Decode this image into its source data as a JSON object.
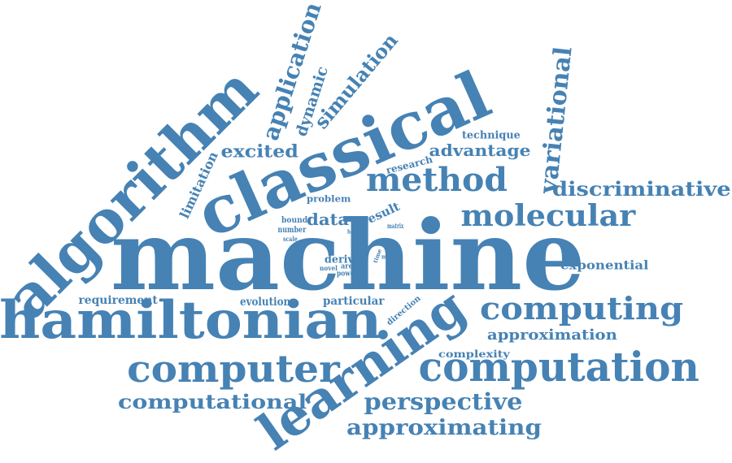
{
  "accent_color": "#4682b4",
  "words": [
    {
      "id": "machine",
      "text": "machine"
    },
    {
      "id": "classical",
      "text": "classical"
    },
    {
      "id": "algorithm",
      "text": "algorithm"
    },
    {
      "id": "hamiltonian",
      "text": "hamiltonian"
    },
    {
      "id": "learning",
      "text": "learning"
    },
    {
      "id": "computation",
      "text": "computation"
    },
    {
      "id": "computer",
      "text": "computer"
    },
    {
      "id": "computing",
      "text": "computing"
    },
    {
      "id": "method",
      "text": "method"
    },
    {
      "id": "molecular",
      "text": "molecular"
    },
    {
      "id": "variational",
      "text": "variational"
    },
    {
      "id": "application",
      "text": "application"
    },
    {
      "id": "simulation",
      "text": "simulation"
    },
    {
      "id": "discriminative",
      "text": "discriminative"
    },
    {
      "id": "perspective",
      "text": "perspective"
    },
    {
      "id": "approximating",
      "text": "approximating"
    },
    {
      "id": "computational",
      "text": "computational"
    },
    {
      "id": "excited",
      "text": "excited"
    },
    {
      "id": "dynamic",
      "text": "dynamic"
    },
    {
      "id": "advantage",
      "text": "advantage"
    },
    {
      "id": "approximation",
      "text": "approximation"
    },
    {
      "id": "limitation",
      "text": "limitation"
    },
    {
      "id": "data",
      "text": "data"
    },
    {
      "id": "exponential",
      "text": "exponential"
    },
    {
      "id": "requirement",
      "text": "requirement"
    },
    {
      "id": "evolution",
      "text": "evolution"
    },
    {
      "id": "particular",
      "text": "particular"
    },
    {
      "id": "technique",
      "text": "technique"
    },
    {
      "id": "research",
      "text": "research"
    },
    {
      "id": "complexity",
      "text": "complexity"
    },
    {
      "id": "result",
      "text": "result"
    },
    {
      "id": "derive",
      "text": "derive"
    },
    {
      "id": "direction",
      "text": "direction"
    },
    {
      "id": "problem",
      "text": "problem"
    },
    {
      "id": "bound",
      "text": "bound"
    },
    {
      "id": "number",
      "text": "number"
    },
    {
      "id": "scale",
      "text": "scale"
    },
    {
      "id": "hard",
      "text": "hard"
    },
    {
      "id": "matrix",
      "text": "matrix"
    },
    {
      "id": "field",
      "text": "field"
    },
    {
      "id": "time",
      "text": "time"
    },
    {
      "id": "most",
      "text": "most"
    },
    {
      "id": "novel",
      "text": "novel"
    },
    {
      "id": "area",
      "text": "area"
    },
    {
      "id": "power",
      "text": "power"
    }
  ]
}
